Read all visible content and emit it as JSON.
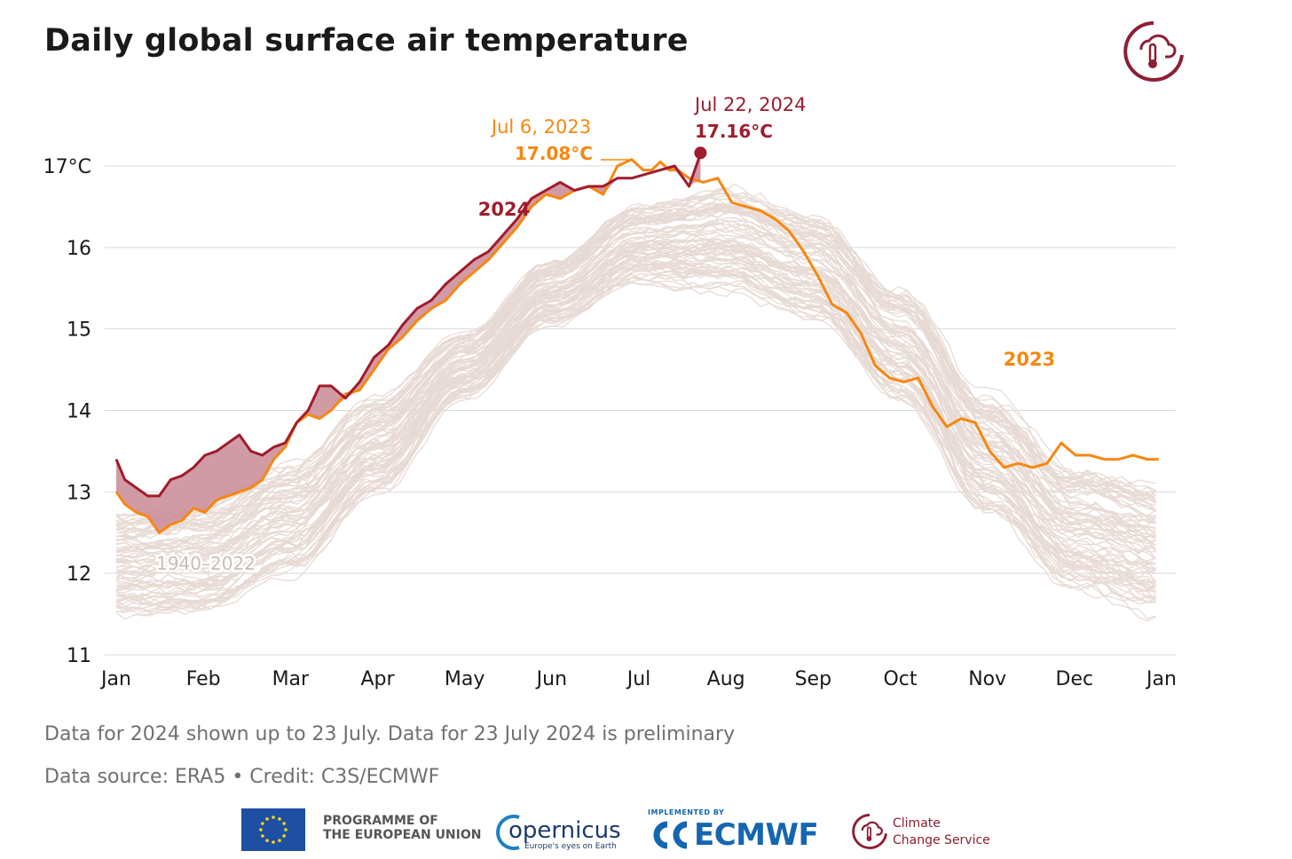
{
  "title": "Daily global surface air temperature",
  "notes": {
    "preliminary": "Data for 2024 shown up to 23 July. Data for 23 July 2024 is preliminary",
    "source": "Data source: ERA5 • Credit: C3S/ECMWF"
  },
  "footer": {
    "eu_line1": "PROGRAMME OF",
    "eu_line2": "THE EUROPEAN UNION",
    "copernicus": "opernicus",
    "copernicus_tagline": "Europe's eyes on Earth",
    "ecmwf_implemented": "IMPLEMENTED BY",
    "ecmwf": "ECMWF",
    "c3s_line1": "Climate",
    "c3s_line2": "Change Service"
  },
  "colors": {
    "y2023": "#f7870f",
    "y2024": "#a01c2c",
    "fill2024": "#c98a96",
    "historical": "#e7d9d4",
    "grid": "#d9d9d9",
    "c3s": "#8d1f35"
  },
  "chart_data": {
    "type": "line",
    "title": "Daily global surface air temperature",
    "ylabel": "",
    "xlabel": "",
    "ylim": [
      11,
      17
    ],
    "y_ticks": [
      11,
      12,
      13,
      14,
      15,
      16,
      17
    ],
    "y_tick_labels": [
      "11",
      "12",
      "13",
      "14",
      "15",
      "16",
      "17°C"
    ],
    "x_tick_labels": [
      "Jan",
      "Feb",
      "Mar",
      "Apr",
      "May",
      "Jun",
      "Jul",
      "Aug",
      "Sep",
      "Oct",
      "Nov",
      "Dec",
      "Jan"
    ],
    "grid": true,
    "series": [
      {
        "name": "2023",
        "x_days": [
          0,
          3,
          7,
          11,
          15,
          19,
          23,
          27,
          31,
          35,
          39,
          43,
          47,
          51,
          55,
          59,
          63,
          67,
          71,
          75,
          80,
          85,
          90,
          95,
          100,
          105,
          110,
          115,
          120,
          125,
          130,
          135,
          140,
          145,
          150,
          155,
          160,
          165,
          170,
          175,
          180,
          184,
          187,
          190,
          193,
          196,
          200,
          205,
          210,
          215,
          220,
          225,
          230,
          235,
          240,
          245,
          250,
          255,
          260,
          265,
          270,
          275,
          280,
          285,
          290,
          295,
          300,
          305,
          310,
          315,
          320,
          325,
          330,
          335,
          340,
          345,
          350,
          355,
          360,
          364
        ],
        "values": [
          13.0,
          12.85,
          12.75,
          12.7,
          12.5,
          12.6,
          12.65,
          12.8,
          12.75,
          12.9,
          12.95,
          13.0,
          13.05,
          13.15,
          13.4,
          13.55,
          13.85,
          13.95,
          13.9,
          14.0,
          14.2,
          14.25,
          14.5,
          14.75,
          14.9,
          15.1,
          15.25,
          15.35,
          15.55,
          15.7,
          15.85,
          16.05,
          16.25,
          16.5,
          16.65,
          16.6,
          16.7,
          16.75,
          16.65,
          17.0,
          17.08,
          16.95,
          16.95,
          17.05,
          16.95,
          16.95,
          16.85,
          16.8,
          16.85,
          16.55,
          16.5,
          16.45,
          16.35,
          16.2,
          15.95,
          15.65,
          15.3,
          15.2,
          14.95,
          14.55,
          14.4,
          14.35,
          14.4,
          14.05,
          13.8,
          13.9,
          13.85,
          13.5,
          13.3,
          13.35,
          13.3,
          13.35,
          13.6,
          13.45,
          13.45,
          13.4,
          13.4,
          13.45,
          13.4,
          13.4
        ],
        "annotation": {
          "date": "Jul 6, 2023",
          "value": "17.08°C"
        },
        "label": "2023"
      },
      {
        "name": "2024",
        "x_days": [
          0,
          3,
          7,
          11,
          15,
          19,
          23,
          27,
          31,
          35,
          39,
          43,
          47,
          51,
          55,
          59,
          63,
          67,
          71,
          75,
          80,
          85,
          90,
          95,
          100,
          105,
          110,
          115,
          120,
          125,
          130,
          135,
          140,
          145,
          150,
          155,
          160,
          165,
          170,
          175,
          180,
          185,
          190,
          195,
          200,
          203,
          204
        ],
        "values": [
          13.4,
          13.15,
          13.05,
          12.95,
          12.95,
          13.15,
          13.2,
          13.3,
          13.45,
          13.5,
          13.6,
          13.7,
          13.5,
          13.45,
          13.55,
          13.6,
          13.85,
          14.0,
          14.3,
          14.3,
          14.15,
          14.35,
          14.65,
          14.8,
          15.05,
          15.25,
          15.35,
          15.55,
          15.7,
          15.85,
          15.95,
          16.15,
          16.35,
          16.6,
          16.7,
          16.8,
          16.7,
          16.75,
          16.75,
          16.85,
          16.85,
          16.9,
          16.95,
          17.0,
          16.75,
          17.05,
          17.16
        ],
        "annotation": {
          "date": "Jul 22, 2024",
          "value": "17.16°C"
        },
        "label": "2024"
      }
    ],
    "historical": {
      "label": "1940–2022",
      "description_upper": [
        12.8,
        12.9,
        13.4,
        14.2,
        15.0,
        15.9,
        16.6,
        16.8,
        16.5,
        15.6,
        14.3,
        13.4,
        13.2
      ],
      "description_lower": [
        11.4,
        11.4,
        11.9,
        12.9,
        14.1,
        15.0,
        15.5,
        15.4,
        15.0,
        14.0,
        12.6,
        11.7,
        11.4
      ]
    }
  }
}
